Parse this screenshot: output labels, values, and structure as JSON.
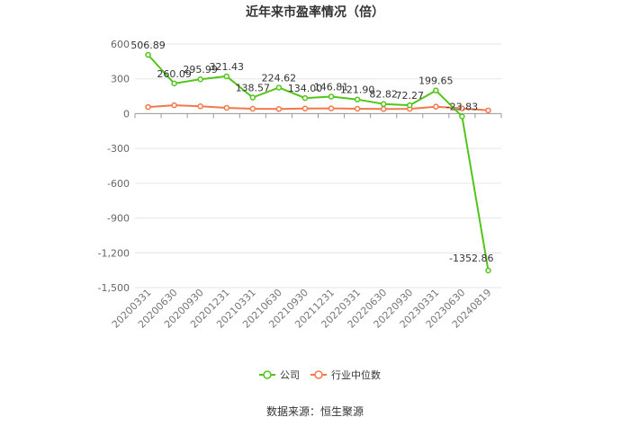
{
  "chart_data": {
    "type": "line",
    "title": "近年来市盈率情况（倍）",
    "categories": [
      "20200331",
      "20200630",
      "20200930",
      "20201231",
      "20210331",
      "20210630",
      "20210930",
      "20211231",
      "20220331",
      "20220630",
      "20220930",
      "20230331",
      "20230630",
      "20240819"
    ],
    "series": [
      {
        "name": "公司",
        "values": [
          506.89,
          260.09,
          295.99,
          321.43,
          138.57,
          224.62,
          134.0,
          146.81,
          121.9,
          82.82,
          72.27,
          199.65,
          -23.83,
          -1352.86
        ],
        "labels": [
          "506.89",
          "260.09",
          "295.99",
          "321.43",
          "138.57",
          "224.62",
          "134.00",
          "146.81",
          "121.90",
          "82.82",
          "72.27",
          "199.65",
          "-23.83",
          "-1352.86"
        ],
        "color": "#52c41a"
      },
      {
        "name": "行业中位数",
        "values": [
          57,
          72,
          63,
          50,
          42,
          40,
          44,
          45,
          42,
          40,
          41,
          60,
          45,
          28
        ],
        "color": "#f4784a"
      }
    ],
    "yticks": [
      "600",
      "300",
      "0",
      "-300",
      "-600",
      "-900",
      "-1,200",
      "-1,500"
    ],
    "ylim": [
      -1500,
      600
    ],
    "legend_position": "bottom",
    "grid": true
  },
  "source_text": "数据来源：恒生聚源"
}
